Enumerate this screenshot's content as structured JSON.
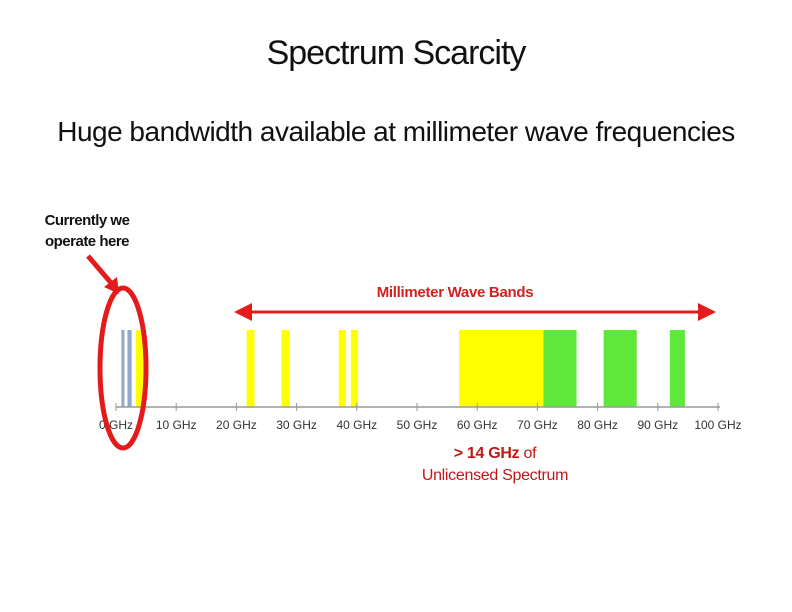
{
  "title": "Spectrum Scarcity",
  "subtitle": "Huge bandwidth available at millimeter wave frequencies",
  "current_note": {
    "line1": "Currently we",
    "line2": "operate here"
  },
  "mmwave_label": "Millimeter Wave Bands",
  "unlicensed_note": {
    "line1": "> 14 GHz",
    "line1_suffix": " of",
    "line2": "Unlicensed Spectrum"
  },
  "colors": {
    "highlight": "#e31b1b",
    "licensed_current": "#8fa8cc",
    "mm_band": "#ffff00",
    "unlicensed": "#5fe83a",
    "axis": "#999999"
  },
  "axis": {
    "min": 0,
    "max": 100,
    "ticks": [
      "0 GHz",
      "10 GHz",
      "20 GHz",
      "30 GHz",
      "40 GHz",
      "50 GHz",
      "60 GHz",
      "70 GHz",
      "80 GHz",
      "90 GHz",
      "100 GHz"
    ]
  },
  "bands": [
    {
      "start": 0.9,
      "end": 1.4,
      "kind": "current"
    },
    {
      "start": 1.9,
      "end": 2.6,
      "kind": "current"
    },
    {
      "start": 3.3,
      "end": 4.6,
      "kind": "current-yellow"
    },
    {
      "start": 21.7,
      "end": 23.0,
      "kind": "mm"
    },
    {
      "start": 27.5,
      "end": 28.8,
      "kind": "mm"
    },
    {
      "start": 37.0,
      "end": 38.2,
      "kind": "mm"
    },
    {
      "start": 39.0,
      "end": 40.2,
      "kind": "mm"
    },
    {
      "start": 57.0,
      "end": 71.0,
      "kind": "mm"
    },
    {
      "start": 71.0,
      "end": 76.5,
      "kind": "unlicensed"
    },
    {
      "start": 81.0,
      "end": 86.5,
      "kind": "unlicensed"
    },
    {
      "start": 92.0,
      "end": 94.5,
      "kind": "unlicensed"
    }
  ]
}
